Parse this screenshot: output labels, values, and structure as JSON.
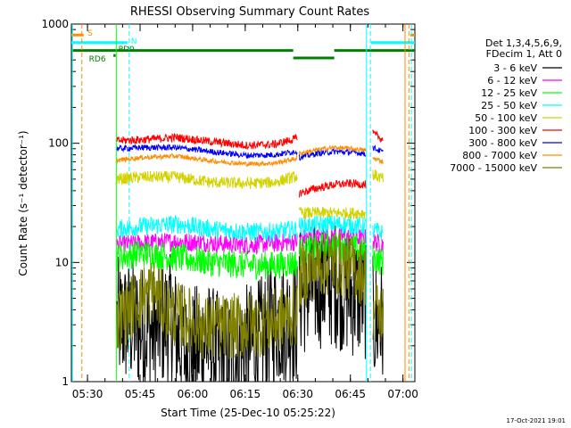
{
  "chart_data": {
    "type": "line",
    "title": "RHESSI Observing Summary Count Rates",
    "xlabel": "Start Time (25-Dec-10 05:25:22)",
    "ylabel": "Count Rate (s⁻¹ detector⁻¹)",
    "yscale": "log",
    "ylim": [
      1,
      1000
    ],
    "xlim_min": [
      0,
      98
    ],
    "x_units": "minutes after 05:25:22",
    "ytick_labels": [
      "1",
      "10",
      "100",
      "1000"
    ],
    "xticks": [
      {
        "t": 4.6,
        "label": "05:30"
      },
      {
        "t": 19.6,
        "label": "05:45"
      },
      {
        "t": 34.6,
        "label": "06:00"
      },
      {
        "t": 49.6,
        "label": "06:15"
      },
      {
        "t": 64.6,
        "label": "06:30"
      },
      {
        "t": 79.6,
        "label": "06:45"
      },
      {
        "t": 94.6,
        "label": "07:00"
      }
    ],
    "legend_header": [
      "Det 1,3,4,5,6,9,",
      "FDecim 1, Att 0"
    ],
    "legend_placement": "right",
    "series": [
      {
        "name": "3 - 6 keV",
        "color": "#000000",
        "segments": [
          [
            [
              13,
              3.2
            ],
            [
              18,
              3.0
            ],
            [
              23,
              2.6
            ],
            [
              28,
              3.4
            ],
            [
              33,
              1.6
            ],
            [
              38,
              2.2
            ],
            [
              43,
              1.5
            ],
            [
              48,
              1.8
            ],
            [
              53,
              2.0
            ],
            [
              58,
              3.2
            ],
            [
              64.5,
              3.2
            ]
          ],
          [
            [
              65,
              5.5
            ],
            [
              70,
              6.5
            ],
            [
              75,
              6.8
            ],
            [
              80,
              5.5
            ],
            [
              84,
              5.2
            ]
          ],
          [
            [
              86,
              3.2
            ],
            [
              89,
              3.0
            ]
          ]
        ],
        "noise": 0.55
      },
      {
        "name": "6 - 12 keV",
        "color": "#ff00ff",
        "segments": [
          [
            [
              13,
              14
            ],
            [
              20,
              14.5
            ],
            [
              30,
              15
            ],
            [
              40,
              14.5
            ],
            [
              50,
              14
            ],
            [
              58,
              14.5
            ],
            [
              64.5,
              15
            ]
          ],
          [
            [
              65,
              16
            ],
            [
              75,
              16.5
            ],
            [
              84,
              16
            ]
          ],
          [
            [
              86,
              15
            ],
            [
              89,
              14
            ]
          ]
        ],
        "noise": 0.08
      },
      {
        "name": "12 - 25 keV",
        "color": "#00ff00",
        "segments": [
          [
            [
              13,
              11
            ],
            [
              20,
              12
            ],
            [
              30,
              11
            ],
            [
              40,
              10
            ],
            [
              50,
              9.5
            ],
            [
              58,
              9.5
            ],
            [
              64.5,
              10
            ]
          ],
          [
            [
              65,
              12.5
            ],
            [
              75,
              14
            ],
            [
              84,
              12.5
            ]
          ],
          [
            [
              86,
              11
            ],
            [
              89,
              10
            ]
          ]
        ],
        "noise": 0.12
      },
      {
        "name": "25 - 50 keV",
        "color": "#00ffff",
        "segments": [
          [
            [
              13,
              19
            ],
            [
              20,
              20
            ],
            [
              30,
              21
            ],
            [
              40,
              19
            ],
            [
              50,
              18
            ],
            [
              58,
              18
            ],
            [
              64.5,
              19
            ]
          ],
          [
            [
              65,
              20
            ],
            [
              75,
              21
            ],
            [
              84,
              20
            ]
          ],
          [
            [
              86,
              18.5
            ],
            [
              89,
              17.5
            ]
          ]
        ],
        "noise": 0.08
      },
      {
        "name": "50 - 100 keV",
        "color": "#d2d200",
        "segments": [
          [
            [
              13,
              50
            ],
            [
              20,
              52
            ],
            [
              30,
              52
            ],
            [
              40,
              47
            ],
            [
              50,
              46
            ],
            [
              58,
              47
            ],
            [
              64.5,
              53
            ]
          ],
          [
            [
              65,
              26
            ],
            [
              75,
              26
            ],
            [
              84,
              26
            ]
          ],
          [
            [
              86,
              55
            ],
            [
              89,
              50
            ]
          ]
        ],
        "noise": 0.05
      },
      {
        "name": "100 - 300 keV",
        "color": "#ff0000",
        "segments": [
          [
            [
              13,
              105
            ],
            [
              20,
              107
            ],
            [
              30,
              112
            ],
            [
              40,
              103
            ],
            [
              50,
              96
            ],
            [
              58,
              98
            ],
            [
              64.5,
              110
            ]
          ],
          [
            [
              65,
              38
            ],
            [
              70,
              42
            ],
            [
              75,
              45
            ],
            [
              80,
              46
            ],
            [
              84,
              45
            ]
          ],
          [
            [
              86,
              120
            ],
            [
              89,
              107
            ]
          ]
        ],
        "noise": 0.035
      },
      {
        "name": "300 - 800 keV",
        "color": "#0000ff",
        "segments": [
          [
            [
              13,
              90
            ],
            [
              20,
              92
            ],
            [
              30,
              92
            ],
            [
              40,
              85
            ],
            [
              50,
              79
            ],
            [
              58,
              80
            ],
            [
              64.5,
              86
            ]
          ],
          [
            [
              65,
              76
            ],
            [
              70,
              82
            ],
            [
              75,
              85
            ],
            [
              80,
              84
            ],
            [
              84,
              82
            ]
          ],
          [
            [
              86,
              92
            ],
            [
              89,
              84
            ]
          ]
        ],
        "noise": 0.025
      },
      {
        "name": "800 - 7000 keV",
        "color": "#ff8c00",
        "segments": [
          [
            [
              13,
              72
            ],
            [
              20,
              76
            ],
            [
              30,
              78
            ],
            [
              40,
              71
            ],
            [
              50,
              67
            ],
            [
              58,
              68
            ],
            [
              64.5,
              75
            ]
          ],
          [
            [
              65,
              82
            ],
            [
              70,
              88
            ],
            [
              75,
              92
            ],
            [
              80,
              90
            ],
            [
              84,
              87
            ]
          ],
          [
            [
              86,
              75
            ],
            [
              89,
              70
            ]
          ]
        ],
        "noise": 0.02
      },
      {
        "name": "7000 - 15000 keV",
        "color": "#808000",
        "segments": [
          [
            [
              13,
              3.2
            ],
            [
              18,
              4.5
            ],
            [
              23,
              6.0
            ],
            [
              28,
              3.8
            ],
            [
              33,
              3.4
            ],
            [
              38,
              2.8
            ],
            [
              43,
              2.9
            ],
            [
              48,
              2.9
            ],
            [
              53,
              3.0
            ],
            [
              58,
              3.2
            ],
            [
              64.5,
              3.8
            ]
          ],
          [
            [
              65,
              7.5
            ],
            [
              70,
              9.5
            ],
            [
              75,
              10
            ],
            [
              80,
              9
            ],
            [
              84,
              8
            ]
          ],
          [
            [
              86,
              4.0
            ],
            [
              89,
              3.6
            ]
          ]
        ],
        "noise": 0.28
      }
    ],
    "vlines": [
      {
        "t": 0.3,
        "color": "#00ffff",
        "style": "solid"
      },
      {
        "t": 3.0,
        "color": "#ff8c00",
        "style": "dashed"
      },
      {
        "t": 12.8,
        "color": "#00ff00",
        "style": "solid"
      },
      {
        "t": 16.5,
        "color": "#00ffff",
        "style": "dashed"
      },
      {
        "t": 84.2,
        "color": "#00ffff",
        "style": "solid"
      },
      {
        "t": 85.3,
        "color": "#00ffff",
        "style": "dashed"
      },
      {
        "t": 95.2,
        "color": "#ff8c00",
        "style": "solid"
      },
      {
        "t": 96.3,
        "color": "#ff8c00",
        "style": "dashed"
      },
      {
        "t": 97.0,
        "color": "#00ffff",
        "style": "dashed"
      }
    ],
    "flag_bars": [
      {
        "color": "#ff8c00",
        "level": 810,
        "segments": [
          [
            0,
            3.5
          ],
          [
            96.8,
            98
          ]
        ]
      },
      {
        "color": "#00ffff",
        "level": 700,
        "segments": [
          [
            0,
            16.0
          ],
          [
            85.5,
            98
          ]
        ]
      },
      {
        "color": "#008000",
        "level": 600,
        "segments": [
          [
            0,
            63.3
          ],
          [
            75.0,
            98
          ]
        ]
      },
      {
        "color": "#008000",
        "level": 520,
        "segments": [
          [
            63.3,
            75.0
          ]
        ]
      },
      {
        "color": "#008000",
        "level": 545,
        "segments": [
          [
            12.0,
            12.6
          ]
        ]
      }
    ],
    "flag_labels": [
      {
        "text": "S",
        "color": "#ff8c00",
        "t": 4.6,
        "level": 840
      },
      {
        "text": "N",
        "color": "#00ffff",
        "t": 17.0,
        "level": 720
      },
      {
        "text": "PD0",
        "color": "#008000",
        "t": 13.4,
        "level": 620
      },
      {
        "text": "RD6",
        "color": "#008000",
        "t": 5.0,
        "level": 510
      }
    ]
  },
  "footer_timestamp": "17-Oct-2021 19:01"
}
